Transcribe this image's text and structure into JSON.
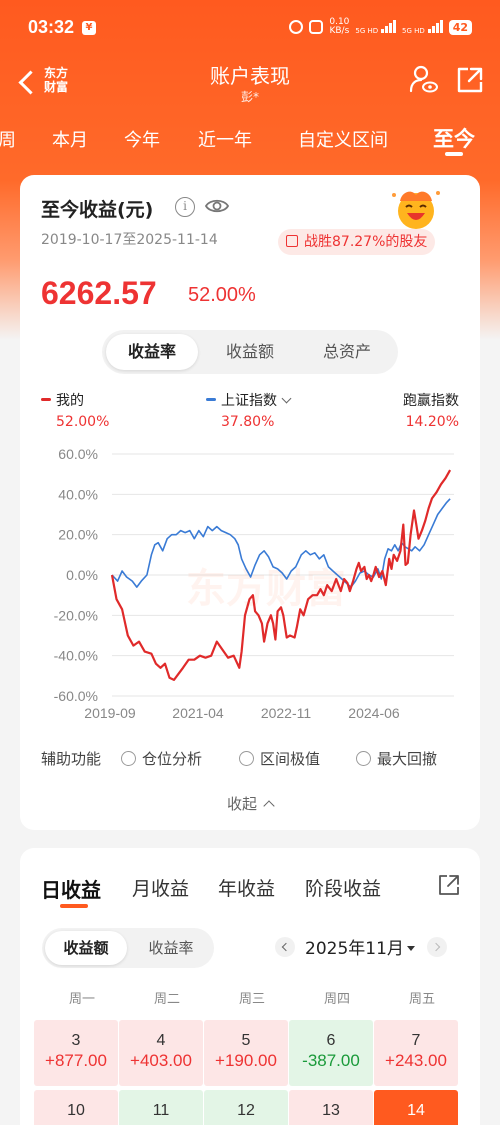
{
  "status_bar": {
    "time": "03:32",
    "speed_value": "0.10",
    "speed_unit": "KB/s",
    "net1": "5G HD",
    "net2": "5G HD",
    "battery": "42"
  },
  "header": {
    "logo_line1": "东方",
    "logo_line2": "财富",
    "title": "账户表现",
    "subtitle": "彭*"
  },
  "period_tabs": [
    "周",
    "本月",
    "今年",
    "近一年",
    "自定义区间",
    "至今"
  ],
  "summary": {
    "title": "至今收益(元)",
    "date_range": "2019-10-17至2025-11-14",
    "beat_text": "战胜87.27%的股友",
    "total_value": "6262.57",
    "total_rate": "52.00%",
    "view_tabs": [
      "收益率",
      "收益额",
      "总资产"
    ],
    "active_view": 0
  },
  "legend": [
    {
      "name": "我的",
      "value": "52.00%",
      "color": "#e02a2a"
    },
    {
      "name": "上证指数",
      "value": "37.80%",
      "color": "#3a7bd5"
    },
    {
      "name": "跑赢指数",
      "value": "14.20%"
    }
  ],
  "chart_data": {
    "type": "line",
    "y_ticks": [
      "60.0%",
      "40.0%",
      "20.0%",
      "0.0%",
      "-20.0%",
      "-40.0%",
      "-60.0%"
    ],
    "x_ticks": [
      "2019-09",
      "2021-04",
      "2022-11",
      "2024-06"
    ],
    "ylim": [
      -60,
      60
    ],
    "x_range": [
      2019.8,
      2025.87
    ],
    "watermark": "东方财富",
    "series": [
      {
        "name": "我的",
        "color": "#e02a2a",
        "points": [
          [
            2019.8,
            0
          ],
          [
            2019.88,
            -12
          ],
          [
            2019.98,
            -17
          ],
          [
            2020.08,
            -30
          ],
          [
            2020.18,
            -35
          ],
          [
            2020.28,
            -33
          ],
          [
            2020.38,
            -38
          ],
          [
            2020.5,
            -39
          ],
          [
            2020.58,
            -44
          ],
          [
            2020.66,
            -46
          ],
          [
            2020.74,
            -44
          ],
          [
            2020.82,
            -51
          ],
          [
            2020.9,
            -52
          ],
          [
            2020.98,
            -49
          ],
          [
            2021.06,
            -46
          ],
          [
            2021.16,
            -42
          ],
          [
            2021.26,
            -42
          ],
          [
            2021.36,
            -40
          ],
          [
            2021.46,
            -41
          ],
          [
            2021.56,
            -40
          ],
          [
            2021.66,
            -33
          ],
          [
            2021.76,
            -37
          ],
          [
            2021.86,
            -41
          ],
          [
            2021.96,
            -40
          ],
          [
            2022.06,
            -46
          ],
          [
            2022.1,
            -38
          ],
          [
            2022.16,
            -20
          ],
          [
            2022.24,
            -12
          ],
          [
            2022.3,
            -10
          ],
          [
            2022.34,
            -18
          ],
          [
            2022.4,
            -20
          ],
          [
            2022.46,
            -24
          ],
          [
            2022.5,
            -33
          ],
          [
            2022.56,
            -24
          ],
          [
            2022.62,
            -20
          ],
          [
            2022.66,
            -24
          ],
          [
            2022.7,
            -32
          ],
          [
            2022.74,
            -18
          ],
          [
            2022.8,
            -16
          ],
          [
            2022.84,
            -20
          ],
          [
            2022.9,
            -31
          ],
          [
            2022.96,
            -30
          ],
          [
            2023.04,
            -31
          ],
          [
            2023.08,
            -26
          ],
          [
            2023.14,
            -17
          ],
          [
            2023.2,
            -20
          ],
          [
            2023.28,
            -12
          ],
          [
            2023.36,
            -10
          ],
          [
            2023.44,
            -10
          ],
          [
            2023.5,
            -7
          ],
          [
            2023.56,
            -10
          ],
          [
            2023.62,
            -5
          ],
          [
            2023.7,
            -8
          ],
          [
            2023.78,
            -2
          ],
          [
            2023.86,
            -8
          ],
          [
            2023.92,
            -2
          ],
          [
            2023.98,
            -4
          ],
          [
            2024.02,
            -8
          ],
          [
            2024.08,
            -3
          ],
          [
            2024.14,
            3
          ],
          [
            2024.18,
            6
          ],
          [
            2024.22,
            2
          ],
          [
            2024.28,
            4
          ],
          [
            2024.32,
            -2
          ],
          [
            2024.36,
            0
          ],
          [
            2024.4,
            -3
          ],
          [
            2024.44,
            0
          ],
          [
            2024.48,
            4
          ],
          [
            2024.54,
            -1
          ],
          [
            2024.6,
            2
          ],
          [
            2024.66,
            -5
          ],
          [
            2024.72,
            8
          ],
          [
            2024.76,
            3
          ],
          [
            2024.8,
            10
          ],
          [
            2024.86,
            7
          ],
          [
            2024.92,
            12
          ],
          [
            2024.97,
            25
          ],
          [
            2025.01,
            5
          ],
          [
            2025.05,
            6
          ],
          [
            2025.1,
            20
          ],
          [
            2025.16,
            32
          ],
          [
            2025.2,
            25
          ],
          [
            2025.24,
            18
          ],
          [
            2025.3,
            22
          ],
          [
            2025.36,
            27
          ],
          [
            2025.42,
            33
          ],
          [
            2025.48,
            38
          ],
          [
            2025.56,
            41
          ],
          [
            2025.64,
            45
          ],
          [
            2025.72,
            48
          ],
          [
            2025.8,
            52
          ]
        ]
      },
      {
        "name": "上证指数",
        "color": "#3a7bd5",
        "points": [
          [
            2019.8,
            0
          ],
          [
            2019.9,
            -3
          ],
          [
            2019.98,
            2
          ],
          [
            2020.06,
            -1
          ],
          [
            2020.16,
            -3
          ],
          [
            2020.24,
            -6
          ],
          [
            2020.32,
            -3
          ],
          [
            2020.42,
            0
          ],
          [
            2020.5,
            10
          ],
          [
            2020.56,
            15
          ],
          [
            2020.62,
            16
          ],
          [
            2020.7,
            12
          ],
          [
            2020.78,
            18
          ],
          [
            2020.86,
            20
          ],
          [
            2020.94,
            20
          ],
          [
            2021.02,
            22
          ],
          [
            2021.1,
            21
          ],
          [
            2021.18,
            22
          ],
          [
            2021.26,
            18
          ],
          [
            2021.34,
            22
          ],
          [
            2021.42,
            19
          ],
          [
            2021.5,
            24
          ],
          [
            2021.58,
            22
          ],
          [
            2021.66,
            24
          ],
          [
            2021.74,
            22
          ],
          [
            2021.82,
            21
          ],
          [
            2021.9,
            20
          ],
          [
            2021.98,
            18
          ],
          [
            2022.04,
            15
          ],
          [
            2022.1,
            8
          ],
          [
            2022.18,
            3
          ],
          [
            2022.26,
            -1
          ],
          [
            2022.34,
            5
          ],
          [
            2022.42,
            10
          ],
          [
            2022.5,
            12
          ],
          [
            2022.58,
            9
          ],
          [
            2022.66,
            4
          ],
          [
            2022.74,
            3
          ],
          [
            2022.82,
            1
          ],
          [
            2022.9,
            -2
          ],
          [
            2022.98,
            2
          ],
          [
            2023.06,
            4
          ],
          [
            2023.16,
            10
          ],
          [
            2023.24,
            12
          ],
          [
            2023.32,
            10
          ],
          [
            2023.4,
            11
          ],
          [
            2023.48,
            8
          ],
          [
            2023.56,
            10
          ],
          [
            2023.64,
            4
          ],
          [
            2023.72,
            2
          ],
          [
            2023.8,
            0
          ],
          [
            2023.88,
            -2
          ],
          [
            2023.96,
            -4
          ],
          [
            2024.04,
            -6
          ],
          [
            2024.12,
            -3
          ],
          [
            2024.2,
            1
          ],
          [
            2024.28,
            2
          ],
          [
            2024.36,
            0
          ],
          [
            2024.44,
            -1
          ],
          [
            2024.52,
            3
          ],
          [
            2024.58,
            -2
          ],
          [
            2024.64,
            8
          ],
          [
            2024.7,
            13
          ],
          [
            2024.76,
            12
          ],
          [
            2024.82,
            15
          ],
          [
            2024.88,
            12
          ],
          [
            2024.94,
            16
          ],
          [
            2025.0,
            14
          ],
          [
            2025.06,
            13
          ],
          [
            2025.12,
            12
          ],
          [
            2025.18,
            14
          ],
          [
            2025.26,
            12
          ],
          [
            2025.34,
            15
          ],
          [
            2025.42,
            20
          ],
          [
            2025.5,
            25
          ],
          [
            2025.58,
            30
          ],
          [
            2025.66,
            33
          ],
          [
            2025.74,
            36
          ],
          [
            2025.8,
            37.8
          ]
        ]
      }
    ]
  },
  "aux": {
    "label": "辅助功能",
    "options": [
      "仓位分析",
      "区间极值",
      "最大回撤"
    ],
    "collapse": "收起"
  },
  "daily": {
    "tabs": [
      "日收益",
      "月收益",
      "年收益",
      "阶段收益"
    ],
    "sub_tabs": [
      "收益额",
      "收益率"
    ],
    "month": "2025年11月",
    "weekdays": [
      "周一",
      "周二",
      "周三",
      "周四",
      "周五"
    ],
    "rows": [
      [
        {
          "day": "3",
          "value": "+877.00",
          "trend": "up"
        },
        {
          "day": "4",
          "value": "+403.00",
          "trend": "up"
        },
        {
          "day": "5",
          "value": "+190.00",
          "trend": "up"
        },
        {
          "day": "6",
          "value": "-387.00",
          "trend": "down"
        },
        {
          "day": "7",
          "value": "+243.00",
          "trend": "up"
        }
      ],
      [
        {
          "day": "10",
          "value": "",
          "trend": "up"
        },
        {
          "day": "11",
          "value": "",
          "trend": "down"
        },
        {
          "day": "12",
          "value": "",
          "trend": "down"
        },
        {
          "day": "13",
          "value": "",
          "trend": "up"
        },
        {
          "day": "14",
          "value": "",
          "trend": "today"
        }
      ]
    ]
  }
}
